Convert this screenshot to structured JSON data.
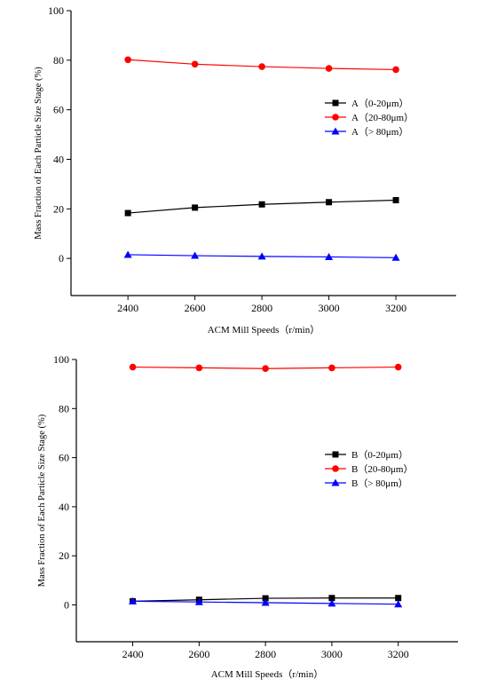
{
  "chart_data": [
    {
      "type": "line",
      "x": [
        2400,
        2600,
        2800,
        3000,
        3200
      ],
      "xticks": [
        "2400",
        "2600",
        "2800",
        "3000",
        "3200"
      ],
      "xlim": [
        2230,
        3380
      ],
      "yticks": [
        "0",
        "20",
        "40",
        "60",
        "80",
        "100"
      ],
      "ylim": [
        -15,
        100
      ],
      "xlabel": "ACM Mill Speeds（r/min）",
      "ylabel": "Mass Fraction of Each Particle Size Stage (%)",
      "legend_position": "right",
      "series": [
        {
          "name": "A（0-20μm）",
          "color": "#000000",
          "marker": "square",
          "values": [
            18.3,
            20.5,
            21.8,
            22.7,
            23.5
          ]
        },
        {
          "name": "A（20-80μm）",
          "color": "#ff0000",
          "marker": "circle",
          "values": [
            80.2,
            78.4,
            77.4,
            76.7,
            76.2
          ]
        },
        {
          "name": "A（> 80μm）",
          "color": "#0000ff",
          "marker": "triangle",
          "values": [
            1.5,
            1.1,
            0.8,
            0.6,
            0.3
          ]
        }
      ]
    },
    {
      "type": "line",
      "x": [
        2400,
        2600,
        2800,
        3000,
        3200
      ],
      "xticks": [
        "2400",
        "2600",
        "2800",
        "3000",
        "3200"
      ],
      "xlim": [
        2230,
        3380
      ],
      "yticks": [
        "0",
        "20",
        "40",
        "60",
        "80",
        "100"
      ],
      "ylim": [
        -15,
        100
      ],
      "xlabel": "ACM Mill Speeds（r/min）",
      "ylabel": "Mass Fraction of Each Particle Size Stage (%)",
      "legend_position": "right",
      "series": [
        {
          "name": "B（0-20μm）",
          "color": "#000000",
          "marker": "square",
          "values": [
            1.5,
            2.1,
            2.7,
            2.8,
            2.8
          ]
        },
        {
          "name": "B（20-80μm）",
          "color": "#ff0000",
          "marker": "circle",
          "values": [
            96.9,
            96.6,
            96.3,
            96.6,
            96.9
          ]
        },
        {
          "name": "B（> 80μm）",
          "color": "#0000ff",
          "marker": "triangle",
          "values": [
            1.5,
            1.2,
            0.9,
            0.6,
            0.3
          ]
        }
      ]
    }
  ]
}
